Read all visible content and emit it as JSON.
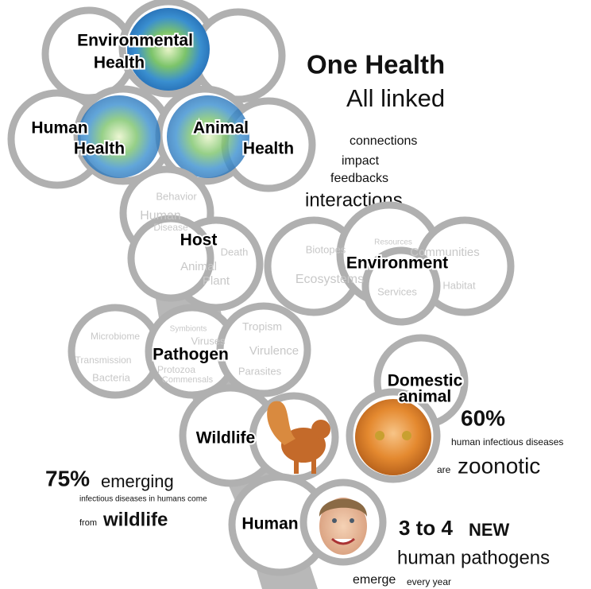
{
  "header": {
    "title": "One Health",
    "subtitle": "All linked"
  },
  "top_cluster": {
    "environmental": [
      "Environmental",
      "Health"
    ],
    "human": [
      "Human",
      "Health"
    ],
    "animal": [
      "Animal",
      "Health"
    ]
  },
  "links": [
    "connections",
    "impact",
    "feedbacks",
    "interactions"
  ],
  "host": {
    "label": "Host",
    "words": [
      "Behavior",
      "Human",
      "Disease",
      "Death",
      "Animal",
      "Plant"
    ]
  },
  "environment": {
    "label": "Environment",
    "words": [
      "Biotopes",
      "Resources",
      "Communities",
      "Ecosystems",
      "Services",
      "Habitat"
    ]
  },
  "pathogen": {
    "label": "Pathogen",
    "words": [
      "Microbiome",
      "Symbionts",
      "Tropism",
      "Viruses",
      "Virulence",
      "Transmission",
      "Protozoa",
      "Parasites",
      "Bacteria",
      "Commensals"
    ]
  },
  "hosts": {
    "wildlife": "Wildlife",
    "domestic": [
      "Domestic",
      "animal"
    ],
    "human": "Human"
  },
  "stat_zoonotic": {
    "value": "60%",
    "line": "human infectious diseases",
    "pre": "are",
    "word": "zoonotic"
  },
  "stat_wildlife": {
    "value": "75%",
    "word": "emerging",
    "line": "infectious diseases in humans come",
    "pre": "from",
    "source": "wildlife"
  },
  "stat_new": {
    "value": "3 to 4",
    "word": "NEW",
    "line": "human pathogens",
    "verb": "emerge",
    "tail": "every year"
  }
}
